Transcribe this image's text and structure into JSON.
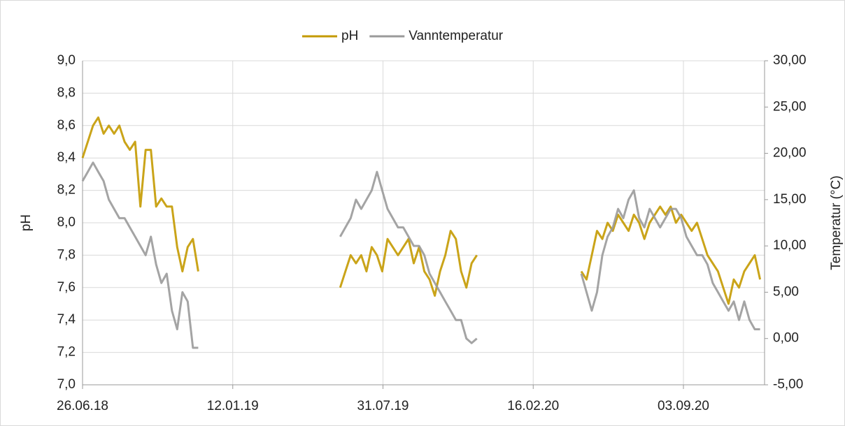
{
  "chart_data": {
    "type": "line",
    "y_label": "pH",
    "y2_label": "Temperatur (°C)",
    "x": [
      "2018-06-26",
      "2018-07-03",
      "2018-07-10",
      "2018-07-17",
      "2018-07-24",
      "2018-07-31",
      "2018-08-07",
      "2018-08-14",
      "2018-08-21",
      "2018-08-28",
      "2018-09-04",
      "2018-09-11",
      "2018-09-18",
      "2018-09-25",
      "2018-10-02",
      "2018-10-09",
      "2018-10-16",
      "2018-10-23",
      "2018-10-30",
      "2018-11-06",
      "2018-11-13",
      "2018-11-20",
      "2018-11-27",
      "2019-01-01",
      "2019-06-04",
      "2019-06-11",
      "2019-06-18",
      "2019-06-25",
      "2019-07-02",
      "2019-07-09",
      "2019-07-16",
      "2019-07-23",
      "2019-07-30",
      "2019-08-06",
      "2019-08-13",
      "2019-08-20",
      "2019-08-27",
      "2019-09-03",
      "2019-09-10",
      "2019-09-17",
      "2019-09-24",
      "2019-10-01",
      "2019-10-08",
      "2019-10-15",
      "2019-10-22",
      "2019-10-29",
      "2019-11-05",
      "2019-11-12",
      "2019-11-19",
      "2019-11-26",
      "2019-12-03",
      "2020-01-01",
      "2020-04-20",
      "2020-04-27",
      "2020-05-04",
      "2020-05-11",
      "2020-05-18",
      "2020-05-25",
      "2020-06-01",
      "2020-06-08",
      "2020-06-15",
      "2020-06-22",
      "2020-06-29",
      "2020-07-06",
      "2020-07-13",
      "2020-07-20",
      "2020-07-27",
      "2020-08-03",
      "2020-08-10",
      "2020-08-17",
      "2020-08-24",
      "2020-08-31",
      "2020-09-07",
      "2020-09-14",
      "2020-09-21",
      "2020-09-28",
      "2020-10-05",
      "2020-10-12",
      "2020-10-19",
      "2020-10-26",
      "2020-11-02",
      "2020-11-09",
      "2020-11-16",
      "2020-11-23",
      "2020-11-30",
      "2020-12-07",
      "2020-12-14"
    ],
    "series": [
      {
        "name": "pH",
        "color": "#c49a00",
        "values": [
          8.4,
          8.5,
          8.6,
          8.65,
          8.55,
          8.6,
          8.55,
          8.6,
          8.5,
          8.45,
          8.5,
          8.1,
          8.45,
          8.45,
          8.1,
          8.15,
          8.1,
          8.1,
          7.85,
          7.7,
          7.85,
          7.9,
          7.7,
          null,
          7.6,
          7.7,
          7.8,
          7.75,
          7.8,
          7.7,
          7.85,
          7.8,
          7.7,
          7.9,
          7.85,
          7.8,
          7.85,
          7.9,
          7.75,
          7.85,
          7.7,
          7.65,
          7.55,
          7.7,
          7.8,
          7.95,
          7.9,
          7.7,
          7.6,
          7.75,
          7.8,
          null,
          7.7,
          7.65,
          7.8,
          7.95,
          7.9,
          8.0,
          7.95,
          8.05,
          8.0,
          7.95,
          8.05,
          8.0,
          7.9,
          8.0,
          8.05,
          8.1,
          8.05,
          8.1,
          8.0,
          8.05,
          8.0,
          7.95,
          8.0,
          7.9,
          7.8,
          7.75,
          7.7,
          7.6,
          7.5,
          7.65,
          7.6,
          7.7,
          7.75,
          7.8,
          7.65
        ]
      },
      {
        "name": "Vanntemperatur",
        "color": "#9a9a9a",
        "axis": "y2",
        "values": [
          17,
          18,
          19,
          18,
          17,
          15,
          14,
          13,
          13,
          12,
          11,
          10,
          9,
          11,
          8,
          6,
          7,
          3,
          1,
          5,
          4,
          -1,
          -1,
          null,
          11,
          12,
          13,
          15,
          14,
          15,
          16,
          18,
          16,
          14,
          13,
          12,
          12,
          11,
          10,
          10,
          9,
          7,
          6,
          5,
          4,
          3,
          2,
          2,
          0,
          -0.5,
          0,
          null,
          7,
          5,
          3,
          5,
          9,
          11,
          12,
          14,
          13,
          15,
          16,
          13,
          12,
          14,
          13,
          12,
          13,
          14,
          14,
          13,
          11,
          10,
          9,
          9,
          8,
          6,
          5,
          4,
          3,
          4,
          2,
          4,
          2,
          1,
          1
        ]
      }
    ],
    "xlim": [
      "2018-06-26",
      "2020-12-20"
    ],
    "xticks": [
      {
        "value": "2018-06-26",
        "label": "26.06.18"
      },
      {
        "value": "2019-01-12",
        "label": "12.01.19"
      },
      {
        "value": "2019-07-31",
        "label": "31.07.19"
      },
      {
        "value": "2020-02-16",
        "label": "16.02.20"
      },
      {
        "value": "2020-09-03",
        "label": "03.09.20"
      }
    ],
    "ylim": [
      7,
      9
    ],
    "yticks": [
      {
        "value": 7,
        "label": "7,0"
      },
      {
        "value": 7.2,
        "label": "7,2"
      },
      {
        "value": 7.4,
        "label": "7,4"
      },
      {
        "value": 7.6,
        "label": "7,6"
      },
      {
        "value": 7.8,
        "label": "7,8"
      },
      {
        "value": 8,
        "label": "8,0"
      },
      {
        "value": 8.2,
        "label": "8,2"
      },
      {
        "value": 8.4,
        "label": "8,4"
      },
      {
        "value": 8.6,
        "label": "8,6"
      },
      {
        "value": 8.8,
        "label": "8,8"
      },
      {
        "value": 9,
        "label": "9,0"
      }
    ],
    "y2lim": [
      -5,
      30
    ],
    "y2ticks": [
      {
        "value": -5,
        "label": "-5,00"
      },
      {
        "value": 0,
        "label": "0,00"
      },
      {
        "value": 5,
        "label": "5,00"
      },
      {
        "value": 10,
        "label": "10,00"
      },
      {
        "value": 15,
        "label": "15,00"
      },
      {
        "value": 20,
        "label": "20,00"
      },
      {
        "value": 25,
        "label": "25,00"
      },
      {
        "value": 30,
        "label": "30,00"
      }
    ],
    "grid": true,
    "legend": "top"
  }
}
